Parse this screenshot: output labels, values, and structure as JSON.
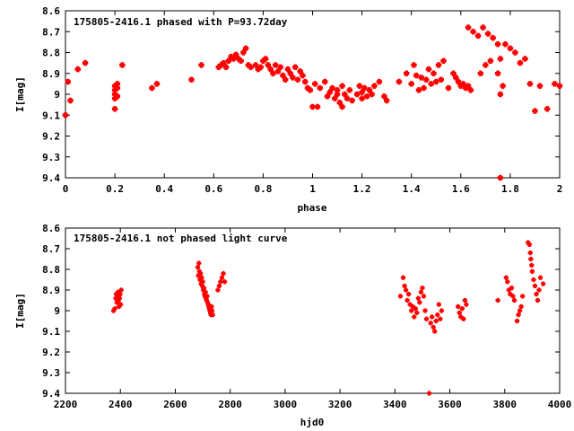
{
  "chart_data": [
    {
      "type": "scatter",
      "title": "175805-2416.1 phased with P=93.72day",
      "xlabel": "phase",
      "ylabel": "I[mag]",
      "xlim": [
        0,
        2
      ],
      "ylim": [
        9.4,
        8.6
      ],
      "y_inverted": true,
      "xticks": [
        "0",
        "0.2",
        "0.4",
        "0.6",
        "0.8",
        "1",
        "1.2",
        "1.4",
        "1.6",
        "1.8",
        "2"
      ],
      "yticks": [
        "8.6",
        "8.7",
        "8.8",
        "8.9",
        "9",
        "9.1",
        "9.2",
        "9.3",
        "9.4"
      ],
      "grid": false,
      "marker_color": "#ff0000",
      "series": [
        {
          "points": [
            [
              0.0,
              9.1
            ],
            [
              0.01,
              8.94
            ],
            [
              0.02,
              9.03
            ],
            [
              0.05,
              8.88
            ],
            [
              0.08,
              8.85
            ],
            [
              0.2,
              8.96
            ],
            [
              0.2,
              8.98
            ],
            [
              0.2,
              9.0
            ],
            [
              0.2,
              9.02
            ],
            [
              0.2,
              9.07
            ],
            [
              0.21,
              8.95
            ],
            [
              0.21,
              8.97
            ],
            [
              0.21,
              9.01
            ],
            [
              0.23,
              8.86
            ],
            [
              0.35,
              8.97
            ],
            [
              0.37,
              8.95
            ],
            [
              0.51,
              8.93
            ],
            [
              0.55,
              8.86
            ],
            [
              0.62,
              8.87
            ],
            [
              0.63,
              8.86
            ],
            [
              0.64,
              8.85
            ],
            [
              0.65,
              8.87
            ],
            [
              0.66,
              8.84
            ],
            [
              0.67,
              8.82
            ],
            [
              0.68,
              8.83
            ],
            [
              0.69,
              8.81
            ],
            [
              0.7,
              8.83
            ],
            [
              0.71,
              8.84
            ],
            [
              0.72,
              8.8
            ],
            [
              0.73,
              8.78
            ],
            [
              0.74,
              8.86
            ],
            [
              0.75,
              8.87
            ],
            [
              0.77,
              8.86
            ],
            [
              0.78,
              8.88
            ],
            [
              0.79,
              8.87
            ],
            [
              0.8,
              8.84
            ],
            [
              0.81,
              8.83
            ],
            [
              0.82,
              8.86
            ],
            [
              0.83,
              8.88
            ],
            [
              0.84,
              8.9
            ],
            [
              0.85,
              8.86
            ],
            [
              0.86,
              8.89
            ],
            [
              0.87,
              8.87
            ],
            [
              0.88,
              8.91
            ],
            [
              0.89,
              8.93
            ],
            [
              0.9,
              8.88
            ],
            [
              0.91,
              8.9
            ],
            [
              0.92,
              8.92
            ],
            [
              0.93,
              8.87
            ],
            [
              0.94,
              8.93
            ],
            [
              0.95,
              8.89
            ],
            [
              0.96,
              8.91
            ],
            [
              0.97,
              8.94
            ],
            [
              0.98,
              8.97
            ],
            [
              0.99,
              8.98
            ],
            [
              1.0,
              9.06
            ],
            [
              1.01,
              8.95
            ],
            [
              1.02,
              9.06
            ],
            [
              1.03,
              8.97
            ],
            [
              1.05,
              8.94
            ],
            [
              1.06,
              9.01
            ],
            [
              1.07,
              8.99
            ],
            [
              1.08,
              8.97
            ],
            [
              1.09,
              9.02
            ],
            [
              1.1,
              8.98
            ],
            [
              1.1,
              9.0
            ],
            [
              1.11,
              9.04
            ],
            [
              1.12,
              8.96
            ],
            [
              1.12,
              9.06
            ],
            [
              1.13,
              9.0
            ],
            [
              1.14,
              9.02
            ],
            [
              1.15,
              8.98
            ],
            [
              1.16,
              9.03
            ],
            [
              1.18,
              9.0
            ],
            [
              1.19,
              8.96
            ],
            [
              1.2,
              8.99
            ],
            [
              1.2,
              9.02
            ],
            [
              1.21,
              8.97
            ],
            [
              1.22,
              9.01
            ],
            [
              1.23,
              8.98
            ],
            [
              1.24,
              9.0
            ],
            [
              1.25,
              8.96
            ],
            [
              1.27,
              8.94
            ],
            [
              1.29,
              9.01
            ],
            [
              1.3,
              9.03
            ],
            [
              1.35,
              8.94
            ],
            [
              1.38,
              8.9
            ],
            [
              1.4,
              8.95
            ],
            [
              1.41,
              8.86
            ],
            [
              1.42,
              8.91
            ],
            [
              1.43,
              8.98
            ],
            [
              1.44,
              8.92
            ],
            [
              1.45,
              8.97
            ],
            [
              1.46,
              8.93
            ],
            [
              1.47,
              8.88
            ],
            [
              1.48,
              8.95
            ],
            [
              1.49,
              8.9
            ],
            [
              1.5,
              8.94
            ],
            [
              1.51,
              8.86
            ],
            [
              1.52,
              8.93
            ],
            [
              1.53,
              8.84
            ],
            [
              1.55,
              8.97
            ],
            [
              1.57,
              8.9
            ],
            [
              1.58,
              8.92
            ],
            [
              1.59,
              8.94
            ],
            [
              1.6,
              8.96
            ],
            [
              1.61,
              8.95
            ],
            [
              1.62,
              8.97
            ],
            [
              1.63,
              8.96
            ],
            [
              1.64,
              8.98
            ],
            [
              1.63,
              8.68
            ],
            [
              1.65,
              8.7
            ],
            [
              1.67,
              8.72
            ],
            [
              1.69,
              8.68
            ],
            [
              1.71,
              8.71
            ],
            [
              1.73,
              8.73
            ],
            [
              1.75,
              8.76
            ],
            [
              1.76,
              8.83
            ],
            [
              1.78,
              8.76
            ],
            [
              1.8,
              8.78
            ],
            [
              1.82,
              8.8
            ],
            [
              1.84,
              8.85
            ],
            [
              1.86,
              8.83
            ],
            [
              1.7,
              8.86
            ],
            [
              1.72,
              8.84
            ],
            [
              1.68,
              8.9
            ],
            [
              1.75,
              8.9
            ],
            [
              1.77,
              8.96
            ],
            [
              1.76,
              9.0
            ],
            [
              1.76,
              9.4
            ],
            [
              1.88,
              8.95
            ],
            [
              1.9,
              9.08
            ],
            [
              1.92,
              8.96
            ],
            [
              1.95,
              9.07
            ],
            [
              1.98,
              8.95
            ],
            [
              2.0,
              8.96
            ]
          ]
        }
      ]
    },
    {
      "type": "scatter",
      "title": "175805-2416.1 not phased light curve",
      "xlabel": "hjd0",
      "ylabel": "I[mag]",
      "xlim": [
        2200,
        4000
      ],
      "ylim": [
        9.4,
        8.6
      ],
      "y_inverted": true,
      "xticks": [
        "2200",
        "2400",
        "2600",
        "2800",
        "3000",
        "3200",
        "3400",
        "3600",
        "3800",
        "4000"
      ],
      "yticks": [
        "8.6",
        "8.7",
        "8.8",
        "8.9",
        "9",
        "9.1",
        "9.2",
        "9.3",
        "9.4"
      ],
      "grid": false,
      "marker_color": "#ff0000",
      "series": [
        {
          "points": [
            [
              2375,
              9.0
            ],
            [
              2380,
              8.99
            ],
            [
              2383,
              8.94
            ],
            [
              2385,
              8.92
            ],
            [
              2387,
              8.96
            ],
            [
              2389,
              8.93
            ],
            [
              2391,
              8.91
            ],
            [
              2393,
              8.95
            ],
            [
              2395,
              8.98
            ],
            [
              2397,
              8.94
            ],
            [
              2399,
              8.92
            ],
            [
              2401,
              8.97
            ],
            [
              2403,
              8.9
            ],
            [
              2682,
              8.79
            ],
            [
              2684,
              8.83
            ],
            [
              2686,
              8.77
            ],
            [
              2688,
              8.81
            ],
            [
              2690,
              8.85
            ],
            [
              2692,
              8.82
            ],
            [
              2694,
              8.87
            ],
            [
              2696,
              8.84
            ],
            [
              2698,
              8.88
            ],
            [
              2700,
              8.86
            ],
            [
              2702,
              8.9
            ],
            [
              2704,
              8.89
            ],
            [
              2706,
              8.92
            ],
            [
              2708,
              8.93
            ],
            [
              2710,
              8.91
            ],
            [
              2712,
              8.94
            ],
            [
              2714,
              8.95
            ],
            [
              2716,
              8.93
            ],
            [
              2718,
              8.96
            ],
            [
              2720,
              8.97
            ],
            [
              2722,
              8.98
            ],
            [
              2724,
              8.99
            ],
            [
              2726,
              9.0
            ],
            [
              2728,
              9.01
            ],
            [
              2730,
              9.02
            ],
            [
              2732,
              8.98
            ],
            [
              2734,
              9.0
            ],
            [
              2736,
              9.02
            ],
            [
              2755,
              8.9
            ],
            [
              2760,
              8.88
            ],
            [
              2765,
              8.86
            ],
            [
              2770,
              8.84
            ],
            [
              2775,
              8.82
            ],
            [
              2780,
              8.86
            ],
            [
              3420,
              8.93
            ],
            [
              3430,
              8.84
            ],
            [
              3435,
              8.88
            ],
            [
              3440,
              8.9
            ],
            [
              3445,
              8.95
            ],
            [
              3450,
              8.92
            ],
            [
              3455,
              8.97
            ],
            [
              3460,
              9.0
            ],
            [
              3465,
              8.98
            ],
            [
              3470,
              9.03
            ],
            [
              3475,
              8.99
            ],
            [
              3480,
              9.01
            ],
            [
              3485,
              8.94
            ],
            [
              3490,
              8.96
            ],
            [
              3495,
              8.91
            ],
            [
              3500,
              8.89
            ],
            [
              3505,
              8.93
            ],
            [
              3510,
              9.0
            ],
            [
              3515,
              9.04
            ],
            [
              3525,
              9.4
            ],
            [
              3530,
              9.06
            ],
            [
              3535,
              9.03
            ],
            [
              3540,
              9.08
            ],
            [
              3545,
              9.1
            ],
            [
              3550,
              9.05
            ],
            [
              3555,
              9.02
            ],
            [
              3560,
              8.97
            ],
            [
              3565,
              9.04
            ],
            [
              3570,
              9.0
            ],
            [
              3630,
              8.98
            ],
            [
              3635,
              9.01
            ],
            [
              3640,
              9.03
            ],
            [
              3645,
              8.99
            ],
            [
              3650,
              9.04
            ],
            [
              3655,
              8.95
            ],
            [
              3660,
              8.97
            ],
            [
              3775,
              8.95
            ],
            [
              3805,
              8.84
            ],
            [
              3810,
              8.86
            ],
            [
              3815,
              8.9
            ],
            [
              3820,
              8.92
            ],
            [
              3825,
              8.89
            ],
            [
              3830,
              8.93
            ],
            [
              3835,
              8.95
            ],
            [
              3845,
              9.05
            ],
            [
              3850,
              9.02
            ],
            [
              3855,
              9.0
            ],
            [
              3860,
              8.98
            ],
            [
              3865,
              8.93
            ],
            [
              3885,
              8.67
            ],
            [
              3890,
              8.68
            ],
            [
              3893,
              8.72
            ],
            [
              3895,
              8.75
            ],
            [
              3898,
              8.78
            ],
            [
              3900,
              8.81
            ],
            [
              3905,
              8.85
            ],
            [
              3910,
              8.88
            ],
            [
              3915,
              8.92
            ],
            [
              3920,
              8.95
            ],
            [
              3925,
              8.9
            ],
            [
              3930,
              8.84
            ],
            [
              3940,
              8.87
            ]
          ]
        }
      ]
    }
  ]
}
